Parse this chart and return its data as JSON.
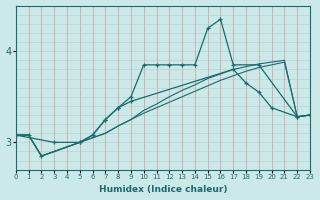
{
  "xlabel": "Humidex (Indice chaleur)",
  "background_color": "#cce9e9",
  "grid_color_h": "#b8d8d8",
  "grid_color_v": "#e8b8b8",
  "line_color": "#1a6b6b",
  "series1_x": [
    0,
    1,
    2,
    3,
    4,
    5,
    6,
    7,
    8,
    9,
    10,
    11,
    12,
    13,
    14,
    15,
    16,
    17,
    18,
    19,
    20,
    21,
    22,
    23
  ],
  "series1_y": [
    3.08,
    3.08,
    2.85,
    2.9,
    2.95,
    3.0,
    3.05,
    3.1,
    3.18,
    3.25,
    3.35,
    3.42,
    3.5,
    3.57,
    3.63,
    3.7,
    3.75,
    3.8,
    3.83,
    3.86,
    3.88,
    3.9,
    3.28,
    3.3
  ],
  "series2_x": [
    0,
    1,
    2,
    3,
    4,
    5,
    6,
    7,
    8,
    9,
    10,
    11,
    12,
    13,
    14,
    15,
    16,
    17,
    18,
    19,
    20,
    21,
    22,
    23
  ],
  "series2_y": [
    3.08,
    3.08,
    2.85,
    2.9,
    2.95,
    3.0,
    3.05,
    3.1,
    3.18,
    3.25,
    3.32,
    3.38,
    3.44,
    3.5,
    3.56,
    3.62,
    3.68,
    3.73,
    3.78,
    3.82,
    3.85,
    3.88,
    3.28,
    3.3
  ],
  "series3_x": [
    0,
    1,
    2,
    5,
    6,
    7,
    8,
    9,
    10,
    11,
    12,
    13,
    14,
    15,
    16,
    17,
    19,
    22,
    23
  ],
  "series3_y": [
    3.08,
    3.08,
    2.85,
    3.0,
    3.08,
    3.25,
    3.38,
    3.5,
    3.85,
    3.85,
    3.85,
    3.85,
    3.85,
    4.25,
    4.35,
    3.85,
    3.85,
    3.28,
    3.3
  ],
  "series4_x": [
    0,
    3,
    5,
    6,
    7,
    8,
    9,
    17,
    18,
    19,
    20,
    22,
    23
  ],
  "series4_y": [
    3.08,
    3.0,
    3.0,
    3.08,
    3.25,
    3.38,
    3.45,
    3.8,
    3.65,
    3.55,
    3.38,
    3.28,
    3.3
  ],
  "xlim": [
    0,
    23
  ],
  "ylim": [
    2.7,
    4.5
  ],
  "yticks": [
    3,
    4
  ],
  "xticks": [
    0,
    1,
    2,
    3,
    4,
    5,
    6,
    7,
    8,
    9,
    10,
    11,
    12,
    13,
    14,
    15,
    16,
    17,
    18,
    19,
    20,
    21,
    22,
    23
  ]
}
